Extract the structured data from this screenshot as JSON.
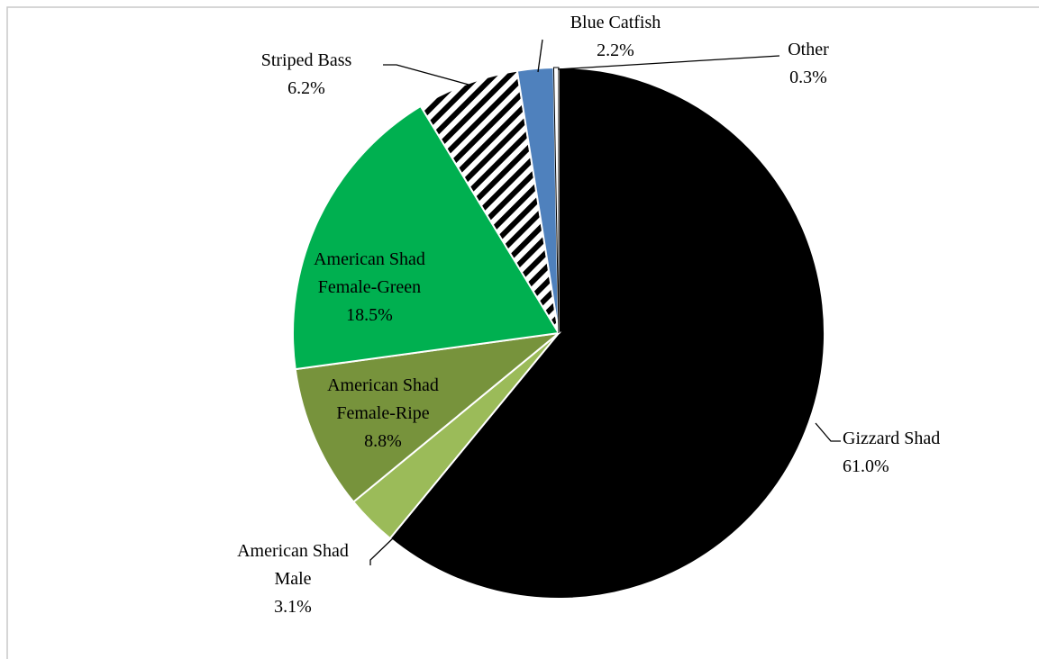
{
  "chart_data": {
    "type": "pie",
    "categories": [
      "Gizzard Shad",
      "American Shad Male",
      "American Shad Female-Ripe",
      "American Shad Female-Green",
      "Striped Bass",
      "Blue Catfish",
      "Other"
    ],
    "values": [
      61.0,
      3.1,
      8.8,
      18.5,
      6.2,
      2.2,
      0.3
    ],
    "value_labels": [
      "61.0%",
      "3.1%",
      "8.8%",
      "18.5%",
      "6.2%",
      "2.2%",
      "0.3%"
    ],
    "colors": [
      "#000000",
      "#9bbb59",
      "#77933c",
      "#00b050",
      "#000000",
      "#4f81bd",
      "#ffffff"
    ],
    "patterns": [
      "solid",
      "solid",
      "solid",
      "solid",
      "diagonal-stripes",
      "solid",
      "solid"
    ],
    "start_angle": 0,
    "direction": "clockwise"
  }
}
